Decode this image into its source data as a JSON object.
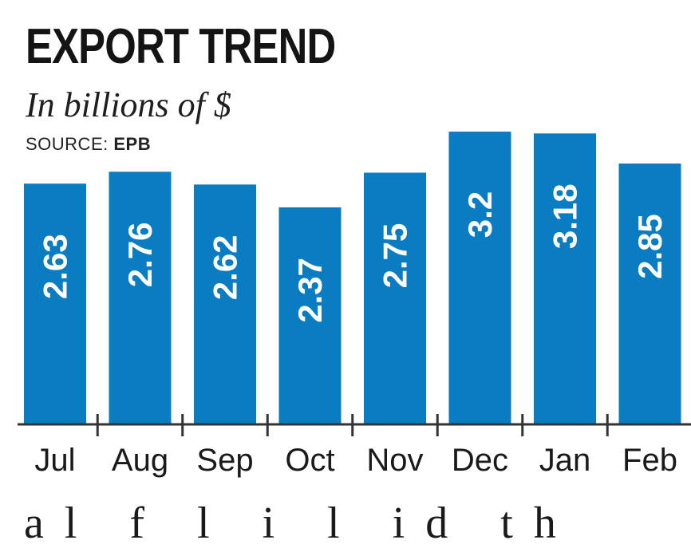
{
  "chart_data": {
    "type": "bar",
    "title": "EXPORT TREND",
    "subtitle": "In billions of $",
    "source_label": "SOURCE:",
    "source_name": "EPB",
    "categories": [
      "Jul",
      "Aug",
      "Sep",
      "Oct",
      "Nov",
      "Dec",
      "Jan",
      "Feb"
    ],
    "values": [
      2.63,
      2.76,
      2.62,
      2.37,
      2.75,
      3.2,
      3.18,
      2.85
    ],
    "value_labels": [
      "2.63",
      "2.76",
      "2.62",
      "2.37",
      "2.75",
      "3.2",
      "3.18",
      "2.85"
    ],
    "ylim": [
      0,
      3.2
    ],
    "bar_color": "#0a7cc1",
    "axis_color": "#333333",
    "grid": false,
    "legend": "none"
  },
  "trailing_text": "al f l i l id th"
}
